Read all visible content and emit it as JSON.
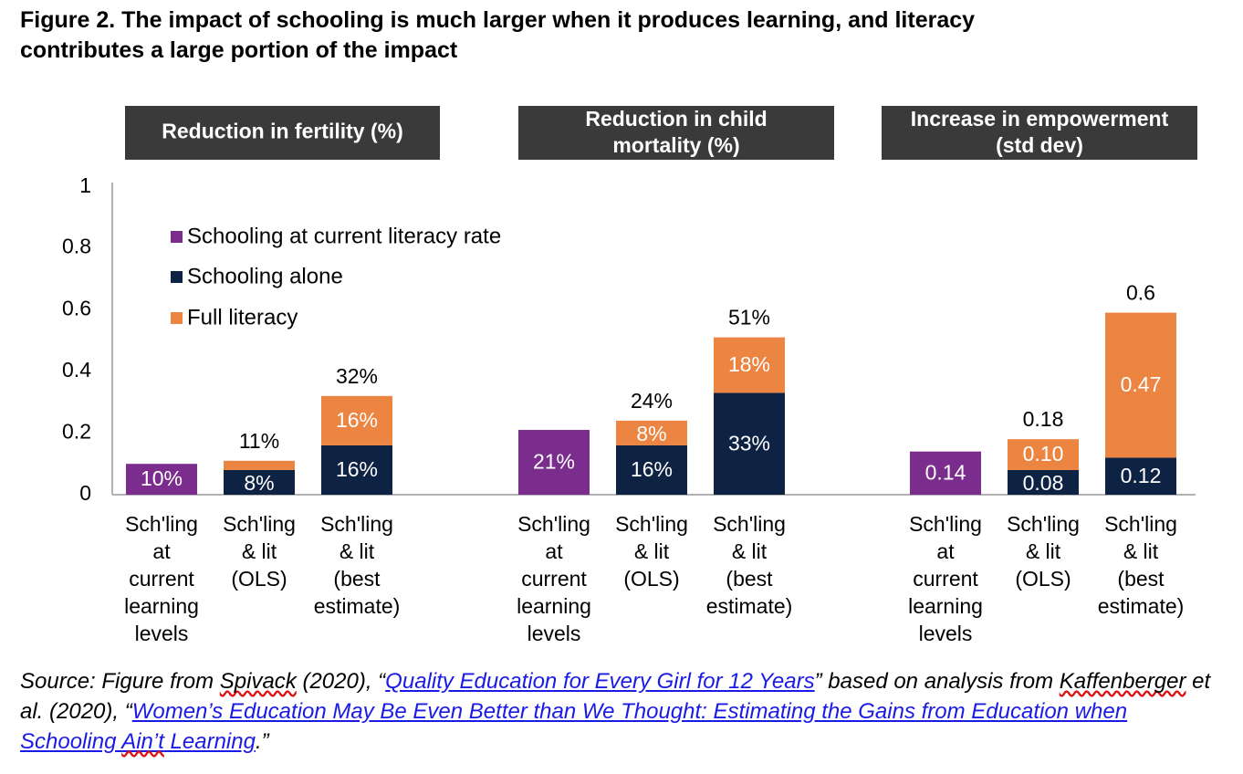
{
  "figure": {
    "title_line1": "Figure 2. The impact of schooling is much larger when it produces learning, and literacy",
    "title_line2": "contributes a large portion of the impact"
  },
  "colors": {
    "purple": "#7b2d8e",
    "navy": "#0e2244",
    "orange": "#ec8442",
    "header_bg": "#3a3a3a",
    "axis": "#9a9a9a"
  },
  "chart_data": {
    "type": "bar",
    "stacked": true,
    "ylim": [
      0,
      1
    ],
    "yticks": [
      "0",
      "0.2",
      "0.4",
      "0.6",
      "0.8",
      "1"
    ],
    "ytick_values": [
      0,
      0.2,
      0.4,
      0.6,
      0.8,
      1
    ],
    "grid": false,
    "legend": {
      "placement": "top-left",
      "items": [
        {
          "label": "Schooling at current literacy rate",
          "color": "#7b2d8e"
        },
        {
          "label": "Schooling alone",
          "color": "#0e2244"
        },
        {
          "label": "Full literacy",
          "color": "#ec8442"
        }
      ]
    },
    "panels": [
      {
        "header": [
          "Reduction in fertility (%)"
        ],
        "bars": [
          {
            "category": [
              "Sch'ling",
              "at",
              "current",
              "learning",
              "levels"
            ],
            "segments": [
              {
                "series": "Schooling at current literacy rate",
                "value": 0.1,
                "label": "10%"
              }
            ],
            "total_label": ""
          },
          {
            "category": [
              "Sch'ling",
              "& lit",
              "(OLS)"
            ],
            "segments": [
              {
                "series": "Schooling alone",
                "value": 0.08,
                "label": "8%"
              },
              {
                "series": "Full literacy",
                "value": 0.03,
                "label": ""
              }
            ],
            "total_label": "11%"
          },
          {
            "category": [
              "Sch'ling",
              "& lit",
              "(best",
              "estimate)"
            ],
            "segments": [
              {
                "series": "Schooling alone",
                "value": 0.16,
                "label": "16%"
              },
              {
                "series": "Full literacy",
                "value": 0.16,
                "label": "16%"
              }
            ],
            "total_label": "32%"
          }
        ]
      },
      {
        "header": [
          "Reduction in child",
          "mortality (%)"
        ],
        "bars": [
          {
            "category": [
              "Sch'ling",
              "at",
              "current",
              "learning",
              "levels"
            ],
            "segments": [
              {
                "series": "Schooling at current literacy rate",
                "value": 0.21,
                "label": "21%"
              }
            ],
            "total_label": ""
          },
          {
            "category": [
              "Sch'ling",
              "& lit",
              "(OLS)"
            ],
            "segments": [
              {
                "series": "Schooling alone",
                "value": 0.16,
                "label": "16%"
              },
              {
                "series": "Full literacy",
                "value": 0.08,
                "label": "8%"
              }
            ],
            "total_label": "24%"
          },
          {
            "category": [
              "Sch'ling",
              "& lit",
              "(best",
              "estimate)"
            ],
            "segments": [
              {
                "series": "Schooling alone",
                "value": 0.33,
                "label": "33%"
              },
              {
                "series": "Full literacy",
                "value": 0.18,
                "label": "18%"
              }
            ],
            "total_label": "51%"
          }
        ]
      },
      {
        "header": [
          "Increase in empowerment",
          "(std dev)"
        ],
        "bars": [
          {
            "category": [
              "Sch'ling",
              "at",
              "current",
              "learning",
              "levels"
            ],
            "segments": [
              {
                "series": "Schooling at current literacy rate",
                "value": 0.14,
                "label": "0.14"
              }
            ],
            "total_label": ""
          },
          {
            "category": [
              "Sch'ling",
              "& lit",
              "(OLS)"
            ],
            "segments": [
              {
                "series": "Schooling alone",
                "value": 0.08,
                "label": "0.08"
              },
              {
                "series": "Full literacy",
                "value": 0.1,
                "label": "0.10"
              }
            ],
            "total_label": "0.18"
          },
          {
            "category": [
              "Sch'ling",
              "& lit",
              "(best",
              "estimate)"
            ],
            "segments": [
              {
                "series": "Schooling alone",
                "value": 0.12,
                "label": "0.12"
              },
              {
                "series": "Full literacy",
                "value": 0.47,
                "label": "0.47"
              }
            ],
            "total_label": "0.6"
          }
        ]
      }
    ]
  },
  "source": {
    "prefix": "Source: Figure from ",
    "author1": "Spivack",
    "mid1": " (2020), “",
    "link1": "Quality Education for Every Girl for 12 Years",
    "mid2": "” based on analysis from  ",
    "author2": "Kaffenberger",
    "mid3": " et al. (2020), “",
    "link2a": "Women’s Education May Be Even Better than We Thought: Estimating the Gains from Education when Schooling ",
    "link2b": "Ain’t",
    "link2c": " Learning",
    "suffix": ".”"
  }
}
